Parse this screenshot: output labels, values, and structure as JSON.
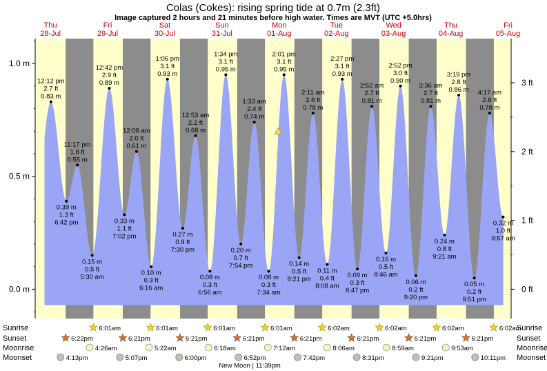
{
  "header": {
    "title": "Colas (Cokes): rising  spring tide at 0.7m (2.3ft)",
    "subtitle": "Image captured 2 hours and 21 minutes before high water. Times are MVT (UTC +5.0hrs)"
  },
  "days": [
    {
      "weekday": "Thu",
      "date": "28-Jul"
    },
    {
      "weekday": "Fri",
      "date": "29-Jul"
    },
    {
      "weekday": "Sat",
      "date": "30-Jul"
    },
    {
      "weekday": "Sun",
      "date": "31-Jul"
    },
    {
      "weekday": "Mon",
      "date": "01-Aug"
    },
    {
      "weekday": "Tue",
      "date": "02-Aug"
    },
    {
      "weekday": "Wed",
      "date": "03-Aug"
    },
    {
      "weekday": "Thu",
      "date": "04-Aug"
    },
    {
      "weekday": "Fri",
      "date": "05-Aug"
    }
  ],
  "chart_data": {
    "type": "area",
    "x_unit": "hours from 28-Jul 00:00 (MVT)",
    "y_left_label_unit": "m",
    "y_left_ticks": [
      "0.0 m",
      "0.5 m",
      "1.0 m"
    ],
    "y_right_ticks": [
      "0 ft",
      "1 ft",
      "2 ft",
      "3 ft"
    ],
    "ylim_m": [
      -0.13,
      1.11
    ],
    "grid": false,
    "tides": [
      {
        "t": 12.2,
        "m": 0.83,
        "time": "12:12 pm",
        "ft": "2.7 ft",
        "mt": "0.83 m",
        "type": "high"
      },
      {
        "t": 18.7,
        "m": 0.39,
        "time": "6:42 pm",
        "ft": "1.3 ft",
        "mt": "0.39 m",
        "type": "low"
      },
      {
        "t": 23.283,
        "m": 0.55,
        "time": "11:17 pm",
        "ft": "1.8 ft",
        "mt": "0.55 m",
        "type": "high"
      },
      {
        "t": 29.5,
        "m": 0.15,
        "time": "5:30 am",
        "ft": "0.5 ft",
        "mt": "0.15 m",
        "type": "low"
      },
      {
        "t": 36.7,
        "m": 0.89,
        "time": "12:42 pm",
        "ft": "2.9 ft",
        "mt": "0.89 m",
        "type": "high"
      },
      {
        "t": 43.033,
        "m": 0.33,
        "time": "7:02 pm",
        "ft": "1.1 ft",
        "mt": "0.33 m",
        "type": "low"
      },
      {
        "t": 48.133,
        "m": 0.61,
        "time": "12:08 am",
        "ft": "2.0 ft",
        "mt": "0.61 m",
        "type": "high"
      },
      {
        "t": 54.267,
        "m": 0.1,
        "time": "6:16 am",
        "ft": "0.3 ft",
        "mt": "0.10 m",
        "type": "low"
      },
      {
        "t": 61.1,
        "m": 0.93,
        "time": "1:06 pm",
        "ft": "3.1 ft",
        "mt": "0.93 m",
        "type": "high"
      },
      {
        "t": 67.5,
        "m": 0.27,
        "time": "7:30 pm",
        "ft": "0.9 ft",
        "mt": "0.27 m",
        "type": "low"
      },
      {
        "t": 72.883,
        "m": 0.68,
        "time": "12:53 am",
        "ft": "2.2 ft",
        "mt": "0.68 m",
        "type": "high"
      },
      {
        "t": 78.933,
        "m": 0.08,
        "time": "6:56 am",
        "ft": "0.3 ft",
        "mt": "0.08 m",
        "type": "low"
      },
      {
        "t": 85.567,
        "m": 0.95,
        "time": "1:34 pm",
        "ft": "3.1 ft",
        "mt": "0.95 m",
        "type": "high"
      },
      {
        "t": 91.9,
        "m": 0.2,
        "time": "7:54 pm",
        "ft": "0.7 ft",
        "mt": "0.20 m",
        "type": "low"
      },
      {
        "t": 97.55,
        "m": 0.74,
        "time": "1:33 am",
        "ft": "2.4 ft",
        "mt": "0.74 m",
        "type": "high"
      },
      {
        "t": 103.567,
        "m": 0.08,
        "time": "7:34 am",
        "ft": "0.3 ft",
        "mt": "0.08 m",
        "type": "low"
      },
      {
        "t": 110.017,
        "m": 0.95,
        "time": "2:01 pm",
        "ft": "3.1 ft",
        "mt": "0.95 m",
        "type": "high"
      },
      {
        "t": 116.35,
        "m": 0.14,
        "time": "8:21 pm",
        "ft": "0.5 ft",
        "mt": "0.14 m",
        "type": "low"
      },
      {
        "t": 122.183,
        "m": 0.78,
        "time": "2:11 am",
        "ft": "2.6 ft",
        "mt": "0.78 m",
        "type": "high"
      },
      {
        "t": 128.133,
        "m": 0.11,
        "time": "8:08 am",
        "ft": "0.4 ft",
        "mt": "0.11 m",
        "type": "low"
      },
      {
        "t": 134.45,
        "m": 0.93,
        "time": "2:27 pm",
        "ft": "3.1 ft",
        "mt": "0.93 m",
        "type": "high"
      },
      {
        "t": 140.783,
        "m": 0.09,
        "time": "8:47 pm",
        "ft": "0.3 ft",
        "mt": "0.09 m",
        "type": "low"
      },
      {
        "t": 146.867,
        "m": 0.81,
        "time": "2:52 am",
        "ft": "2.7 ft",
        "mt": "0.81 m",
        "type": "high"
      },
      {
        "t": 152.767,
        "m": 0.16,
        "time": "8:46 am",
        "ft": "0.5 ft",
        "mt": "0.16 m",
        "type": "low"
      },
      {
        "t": 158.867,
        "m": 0.9,
        "time": "2:52 pm",
        "ft": "3.0 ft",
        "mt": "0.90 m",
        "type": "high"
      },
      {
        "t": 165.333,
        "m": 0.06,
        "time": "9:20 pm",
        "ft": "0.2 ft",
        "mt": "0.06 m",
        "type": "low"
      },
      {
        "t": 171.6,
        "m": 0.81,
        "time": "3:36 am",
        "ft": "2.7 ft",
        "mt": "0.81 m",
        "type": "high"
      },
      {
        "t": 177.35,
        "m": 0.24,
        "time": "9:21 am",
        "ft": "0.8 ft",
        "mt": "0.24 m",
        "type": "low"
      },
      {
        "t": 183.317,
        "m": 0.86,
        "time": "3:19 pm",
        "ft": "2.8 ft",
        "mt": "0.86 m",
        "type": "high"
      },
      {
        "t": 189.85,
        "m": 0.05,
        "time": "9:51 pm",
        "ft": "0.2 ft",
        "mt": "0.05 m",
        "type": "low"
      },
      {
        "t": 196.283,
        "m": 0.78,
        "time": "4:17 am",
        "ft": "2.6 ft",
        "mt": "0.78 m",
        "type": "high"
      },
      {
        "t": 201.95,
        "m": 0.32,
        "time": "9:57 am",
        "ft": "1.0 ft",
        "mt": "0.32 m",
        "type": "low"
      }
    ],
    "current_marker": {
      "t": 107.667,
      "m": 0.7
    }
  },
  "events": {
    "labels": {
      "sunrise": "Sunrise",
      "sunset": "Sunset",
      "moonrise": "Moonrise",
      "moonset": "Moonset"
    },
    "sunrise": [
      {
        "t": 30.017,
        "time": "6:01am"
      },
      {
        "t": 54.017,
        "time": "6:01am"
      },
      {
        "t": 78.017,
        "time": "6:01am"
      },
      {
        "t": 102.017,
        "time": "6:01am"
      },
      {
        "t": 126.033,
        "time": "6:02am"
      },
      {
        "t": 150.033,
        "time": "6:02am"
      },
      {
        "t": 174.033,
        "time": "6:02am"
      },
      {
        "t": 198.033,
        "time": "6:02am"
      }
    ],
    "sunset": [
      {
        "t": 18.367,
        "time": "6:22pm"
      },
      {
        "t": 42.35,
        "time": "6:21pm"
      },
      {
        "t": 66.35,
        "time": "6:21pm"
      },
      {
        "t": 90.35,
        "time": "6:21pm"
      },
      {
        "t": 114.35,
        "time": "6:21pm"
      },
      {
        "t": 138.35,
        "time": "6:21pm"
      },
      {
        "t": 162.35,
        "time": "6:21pm"
      },
      {
        "t": 186.35,
        "time": "6:21pm"
      }
    ],
    "moonrise": [
      {
        "t": 28.433,
        "time": "4:26am"
      },
      {
        "t": 53.367,
        "time": "5:22am"
      },
      {
        "t": 78.3,
        "time": "6:18am"
      },
      {
        "t": 103.2,
        "time": "7:12am"
      },
      {
        "t": 128.1,
        "time": "8:06am"
      },
      {
        "t": 152.983,
        "time": "8:59am"
      },
      {
        "t": 177.883,
        "time": "9:53am"
      }
    ],
    "moonset": [
      {
        "t": 16.217,
        "time": "4:13pm"
      },
      {
        "t": 41.117,
        "time": "5:07pm"
      },
      {
        "t": 66.0,
        "time": "6:00pm"
      },
      {
        "t": 90.867,
        "time": "6:52pm"
      },
      {
        "t": 115.7,
        "time": "7:42pm"
      },
      {
        "t": 140.517,
        "time": "8:31pm"
      },
      {
        "t": 165.35,
        "time": "9:21pm"
      },
      {
        "t": 190.183,
        "time": "10:11pm"
      }
    ],
    "moon_note": "New Moon | 11:39pm"
  },
  "colors": {
    "day_bg": "#ffffcc",
    "night_bg": "#8c8c8c",
    "water": "#9aa5f5",
    "sun": "#e6d82a",
    "sunset_star": "#c97a3f",
    "moon_rise": "#f5f5c0",
    "moon_set": "#c0c0b8",
    "day_label": "#cc0000"
  }
}
